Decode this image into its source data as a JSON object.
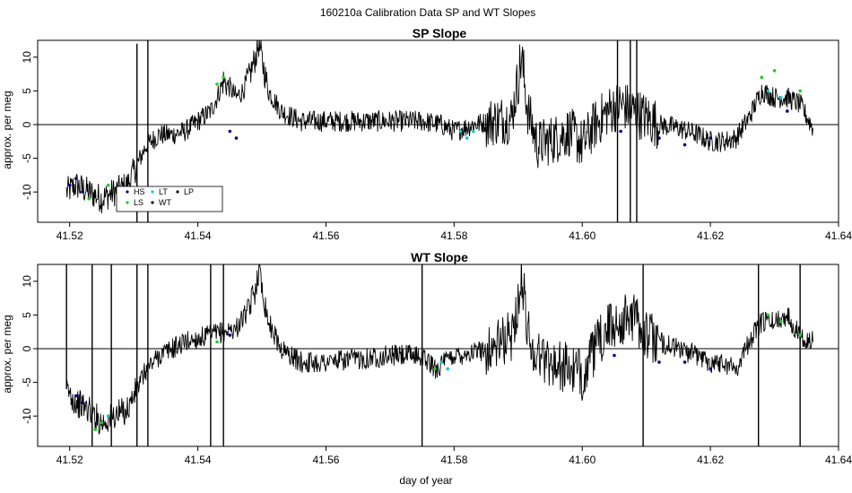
{
  "figure": {
    "suptitle": "160210a   Calibration Data SP and WT Slopes",
    "xlabel": "day of year"
  },
  "legend": {
    "entries": [
      {
        "label": "HS",
        "color": "#000080"
      },
      {
        "label": "LT",
        "color": "#00cccc"
      },
      {
        "label": "LP",
        "color": "#000000"
      },
      {
        "label": "LS",
        "color": "#22cc22"
      },
      {
        "label": "WT",
        "color": "#000000"
      }
    ]
  },
  "chart_data": [
    {
      "type": "line",
      "title": "SP Slope",
      "xlabel": "",
      "ylabel": "approx. per meg",
      "xlim": [
        41.515,
        41.64
      ],
      "ylim": [
        -14.5,
        12.5
      ],
      "xticks": [
        "41.52",
        "41.54",
        "41.56",
        "41.58",
        "41.60",
        "41.62",
        "41.64"
      ],
      "yticks": [
        "-10",
        "-5",
        "0",
        "5",
        "10"
      ],
      "hline": 0,
      "grid": false,
      "legend_location": "bottom-left",
      "series": [
        {
          "name": "WT",
          "color": "#000000",
          "x": [
            41.5195,
            41.521,
            41.523,
            41.525,
            41.527,
            41.529,
            41.5305,
            41.532,
            41.534,
            41.536,
            41.538,
            41.54,
            41.542,
            41.543,
            41.544,
            41.545,
            41.546,
            41.547,
            41.548,
            41.549,
            41.5495,
            41.551,
            41.553,
            41.556,
            41.56,
            41.565,
            41.57,
            41.575,
            41.578,
            41.58,
            41.583,
            41.586,
            41.589,
            41.5905,
            41.5915,
            41.593,
            41.596,
            41.598,
            41.6,
            41.602,
            41.604,
            41.606,
            41.608,
            41.61,
            41.612,
            41.615,
            41.618,
            41.62,
            41.622,
            41.624,
            41.626,
            41.628,
            41.63,
            41.632,
            41.634,
            41.636
          ],
          "values": [
            -10,
            -9,
            -10,
            -11,
            -10,
            -9,
            -6,
            -3,
            -1.5,
            -1.5,
            -1,
            0.5,
            2,
            4,
            6.5,
            5.5,
            4,
            5,
            7,
            10,
            12,
            5,
            2,
            0.5,
            0.5,
            0.5,
            0.5,
            0.5,
            0,
            -1,
            0,
            0.5,
            1,
            10,
            2,
            -3,
            -2,
            -1,
            -3,
            0,
            2,
            3,
            2,
            1,
            0,
            -0.5,
            -1.5,
            -2.5,
            -2.5,
            -2,
            1,
            5,
            4,
            4,
            3,
            -0.5
          ],
          "spikes": [
            {
              "x": 41.5305,
              "low": -14.5,
              "high": 12
            },
            {
              "x": 41.5322,
              "low": -14.5,
              "high": 12.5
            },
            {
              "x": 41.6055,
              "low": -14.5,
              "high": 12.5
            },
            {
              "x": 41.6075,
              "low": -14.5,
              "high": 12.5
            },
            {
              "x": 41.6085,
              "low": -14.5,
              "high": 12.5
            }
          ]
        },
        {
          "name": "HS",
          "color": "#000080",
          "x": [
            41.52,
            41.521,
            41.522,
            41.545,
            41.546,
            41.606,
            41.612,
            41.616,
            41.62,
            41.632
          ],
          "values": [
            -9,
            -8,
            -10,
            -1,
            -2,
            -1,
            -2,
            -3,
            -2,
            2
          ]
        },
        {
          "name": "LS",
          "color": "#22cc22",
          "x": [
            41.523,
            41.526,
            41.528,
            41.543,
            41.544,
            41.628,
            41.63,
            41.634
          ],
          "values": [
            -11,
            -9,
            -10,
            6,
            7,
            7,
            8,
            5
          ]
        },
        {
          "name": "LT",
          "color": "#00cccc",
          "x": [
            41.581,
            41.582,
            41.583,
            41.629,
            41.631
          ],
          "values": [
            -1,
            -2,
            -1,
            5,
            4
          ]
        }
      ]
    },
    {
      "type": "line",
      "title": "WT Slope",
      "xlabel": "day of year",
      "ylabel": "approx. per meg",
      "xlim": [
        41.515,
        41.64
      ],
      "ylim": [
        -14.5,
        12.5
      ],
      "xticks": [
        "41.52",
        "41.54",
        "41.56",
        "41.58",
        "41.60",
        "41.62",
        "41.64"
      ],
      "yticks": [
        "-10",
        "-5",
        "0",
        "5",
        "10"
      ],
      "hline": 0,
      "grid": false,
      "series": [
        {
          "name": "WT",
          "color": "#000000",
          "x": [
            41.5195,
            41.521,
            41.523,
            41.525,
            41.527,
            41.529,
            41.5305,
            41.532,
            41.534,
            41.536,
            41.538,
            41.54,
            41.542,
            41.544,
            41.546,
            41.548,
            41.549,
            41.5495,
            41.551,
            41.553,
            41.556,
            41.56,
            41.565,
            41.57,
            41.575,
            41.577,
            41.58,
            41.583,
            41.586,
            41.589,
            41.5905,
            41.592,
            41.595,
            41.598,
            41.6,
            41.602,
            41.604,
            41.606,
            41.608,
            41.61,
            41.612,
            41.615,
            41.618,
            41.62,
            41.622,
            41.624,
            41.626,
            41.628,
            41.63,
            41.632,
            41.634,
            41.636
          ],
          "values": [
            -6,
            -8,
            -9,
            -11,
            -10,
            -9,
            -6,
            -3,
            -1,
            0,
            1,
            1.5,
            2,
            2.5,
            3,
            6,
            9,
            12,
            4,
            0,
            -2,
            -2,
            -1.5,
            -1,
            -1,
            -3,
            -1,
            -0.5,
            0,
            2,
            10,
            0,
            -2,
            -3,
            -4,
            0,
            3,
            4,
            5,
            2,
            1,
            0,
            -1,
            -2,
            -2,
            -3,
            1,
            4,
            4,
            5,
            2,
            1
          ],
          "spikes": [
            {
              "x": 41.5195,
              "low": -6,
              "high": 12.5
            },
            {
              "x": 41.5235,
              "low": -14.5,
              "high": 12.5
            },
            {
              "x": 41.5265,
              "low": -14.5,
              "high": 12.5
            },
            {
              "x": 41.5305,
              "low": -14.5,
              "high": 12.5
            },
            {
              "x": 41.5322,
              "low": -14.5,
              "high": 12.5
            },
            {
              "x": 41.542,
              "low": -14.5,
              "high": 12.5
            },
            {
              "x": 41.544,
              "low": -14.5,
              "high": 12.5
            },
            {
              "x": 41.575,
              "low": -14.5,
              "high": 12.5
            },
            {
              "x": 41.6095,
              "low": -14.5,
              "high": 12.5
            },
            {
              "x": 41.6275,
              "low": -14.5,
              "high": 12.5
            },
            {
              "x": 41.634,
              "low": -14.5,
              "high": 12.5
            }
          ]
        },
        {
          "name": "HS",
          "color": "#000080",
          "x": [
            41.521,
            41.522,
            41.545,
            41.605,
            41.612,
            41.616,
            41.62
          ],
          "values": [
            -7,
            -8,
            2,
            -1,
            -2,
            -2,
            -3
          ]
        },
        {
          "name": "LS",
          "color": "#22cc22",
          "x": [
            41.524,
            41.525,
            41.543,
            41.577,
            41.629,
            41.631,
            41.634
          ],
          "values": [
            -12,
            -11,
            1,
            -3,
            5,
            4,
            2
          ]
        },
        {
          "name": "LT",
          "color": "#00cccc",
          "x": [
            41.526,
            41.578,
            41.579
          ],
          "values": [
            -10,
            -2,
            -3
          ]
        }
      ]
    }
  ]
}
